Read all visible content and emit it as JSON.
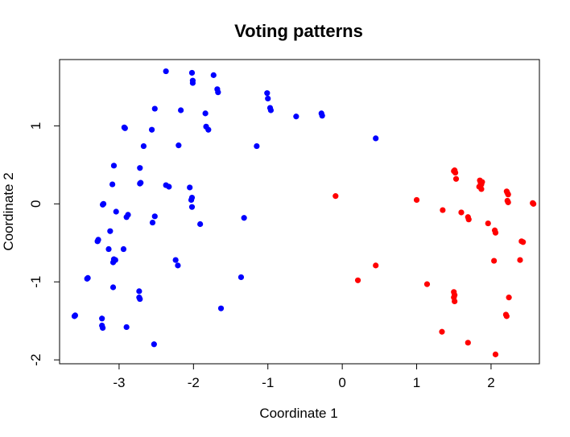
{
  "chart_data": {
    "type": "scatter",
    "title": "Voting patterns",
    "xlabel": "Coordinate 1",
    "ylabel": "Coordinate 2",
    "xlim": [
      -3.8,
      2.65
    ],
    "ylim": [
      -2.05,
      1.85
    ],
    "xticks": [
      -3,
      -2,
      -1,
      0,
      1,
      2
    ],
    "yticks": [
      -2,
      -1,
      0,
      1
    ],
    "xtick_labels": [
      "-3",
      "-2",
      "-1",
      "0",
      "1",
      "2"
    ],
    "ytick_labels": [
      "-2",
      "-1",
      "0",
      "1"
    ],
    "grid": false,
    "series": [
      {
        "color": "#0000ff",
        "points": [
          [
            -2.37,
            1.7
          ],
          [
            -2.02,
            1.68
          ],
          [
            -1.73,
            1.65
          ],
          [
            -2.01,
            1.58
          ],
          [
            -2.01,
            1.55
          ],
          [
            -1.68,
            1.47
          ],
          [
            -1.67,
            1.43
          ],
          [
            -1.01,
            1.42
          ],
          [
            -1.0,
            1.35
          ],
          [
            -0.97,
            1.23
          ],
          [
            -0.96,
            1.2
          ],
          [
            -2.52,
            1.22
          ],
          [
            -2.17,
            1.2
          ],
          [
            -1.84,
            1.16
          ],
          [
            -0.62,
            1.12
          ],
          [
            -0.28,
            1.16
          ],
          [
            -0.27,
            1.13
          ],
          [
            -2.93,
            0.98
          ],
          [
            -2.92,
            0.97
          ],
          [
            -1.83,
            0.99
          ],
          [
            -1.8,
            0.95
          ],
          [
            -2.56,
            0.95
          ],
          [
            0.45,
            0.84
          ],
          [
            -2.67,
            0.74
          ],
          [
            -2.2,
            0.75
          ],
          [
            -1.15,
            0.74
          ],
          [
            -3.07,
            0.49
          ],
          [
            -2.72,
            0.46
          ],
          [
            -3.09,
            0.25
          ],
          [
            -2.72,
            0.26
          ],
          [
            -2.71,
            0.27
          ],
          [
            -2.37,
            0.24
          ],
          [
            -2.33,
            0.22
          ],
          [
            -2.05,
            0.21
          ],
          [
            -2.02,
            0.08
          ],
          [
            -2.03,
            0.05
          ],
          [
            -3.21,
            0.0
          ],
          [
            -3.22,
            -0.01
          ],
          [
            -3.04,
            -0.1
          ],
          [
            -2.88,
            -0.14
          ],
          [
            -2.9,
            -0.17
          ],
          [
            -2.52,
            -0.16
          ],
          [
            -1.32,
            -0.18
          ],
          [
            -2.02,
            -0.04
          ],
          [
            -2.55,
            -0.24
          ],
          [
            -1.91,
            -0.26
          ],
          [
            -3.28,
            -0.46
          ],
          [
            -3.29,
            -0.48
          ],
          [
            -3.12,
            -0.35
          ],
          [
            -3.14,
            -0.58
          ],
          [
            -2.94,
            -0.58
          ],
          [
            -3.07,
            -0.71
          ],
          [
            -3.05,
            -0.72
          ],
          [
            -3.08,
            -0.75
          ],
          [
            -2.24,
            -0.72
          ],
          [
            -2.21,
            -0.79
          ],
          [
            -3.42,
            -0.95
          ],
          [
            -3.43,
            -0.96
          ],
          [
            -1.36,
            -0.94
          ],
          [
            -3.08,
            -1.07
          ],
          [
            -2.73,
            -1.12
          ],
          [
            -2.73,
            -1.2
          ],
          [
            -2.72,
            -1.22
          ],
          [
            -1.63,
            -1.34
          ],
          [
            -3.59,
            -1.43
          ],
          [
            -3.6,
            -1.44
          ],
          [
            -3.23,
            -1.47
          ],
          [
            -3.23,
            -1.56
          ],
          [
            -3.22,
            -1.59
          ],
          [
            -2.9,
            -1.58
          ],
          [
            -2.53,
            -1.8
          ]
        ]
      },
      {
        "color": "#ff0000",
        "points": [
          [
            -0.09,
            0.1
          ],
          [
            1.0,
            0.05
          ],
          [
            1.5,
            0.42
          ],
          [
            1.51,
            0.43
          ],
          [
            1.52,
            0.4
          ],
          [
            1.53,
            0.32
          ],
          [
            1.85,
            0.3
          ],
          [
            1.86,
            0.27
          ],
          [
            1.87,
            0.25
          ],
          [
            1.88,
            0.28
          ],
          [
            1.84,
            0.22
          ],
          [
            1.87,
            0.19
          ],
          [
            2.21,
            0.16
          ],
          [
            2.22,
            0.14
          ],
          [
            2.23,
            0.12
          ],
          [
            2.22,
            0.04
          ],
          [
            2.23,
            0.02
          ],
          [
            2.56,
            0.01
          ],
          [
            2.57,
            0.0
          ],
          [
            1.35,
            -0.08
          ],
          [
            1.6,
            -0.11
          ],
          [
            1.69,
            -0.17
          ],
          [
            1.7,
            -0.2
          ],
          [
            1.96,
            -0.25
          ],
          [
            2.05,
            -0.34
          ],
          [
            2.06,
            -0.37
          ],
          [
            2.41,
            -0.48
          ],
          [
            2.43,
            -0.49
          ],
          [
            2.04,
            -0.73
          ],
          [
            2.39,
            -0.72
          ],
          [
            0.45,
            -0.79
          ],
          [
            0.21,
            -0.98
          ],
          [
            1.14,
            -1.03
          ],
          [
            1.5,
            -1.13
          ],
          [
            1.51,
            -1.17
          ],
          [
            1.5,
            -1.2
          ],
          [
            1.51,
            -1.25
          ],
          [
            2.24,
            -1.2
          ],
          [
            2.2,
            -1.42
          ],
          [
            2.21,
            -1.44
          ],
          [
            1.34,
            -1.64
          ],
          [
            1.69,
            -1.78
          ],
          [
            2.06,
            -1.93
          ]
        ]
      }
    ]
  }
}
